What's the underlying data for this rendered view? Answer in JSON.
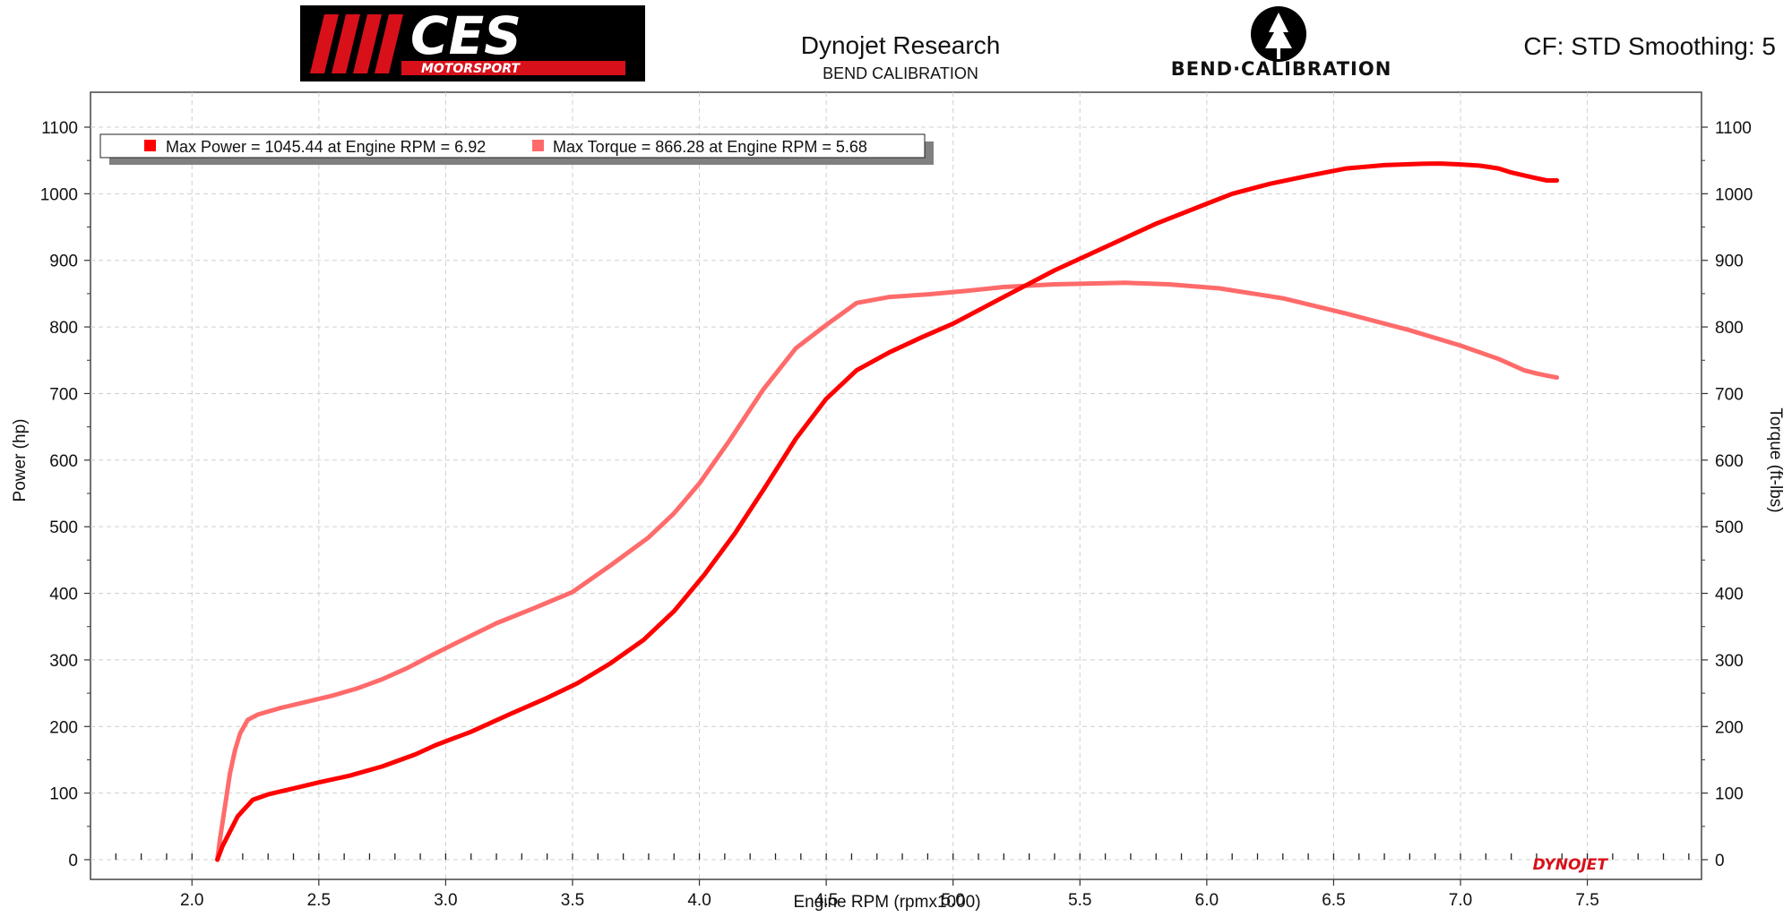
{
  "header": {
    "title": "Dynojet Research",
    "subtitle": "BEND CALIBRATION",
    "settings": "CF: STD Smoothing: 5"
  },
  "logos": {
    "ces_main": "CES",
    "ces_sub": "MOTORSPORT",
    "bend": "BEND·CALIBRATION",
    "dynojet": "DYNOJET"
  },
  "legend": {
    "power": "Max Power = 1045.44 at Engine RPM = 6.92",
    "torque": "Max Torque = 866.28 at Engine RPM = 5.68"
  },
  "colors": {
    "power": "#ff0000",
    "torque": "#ff6b6b",
    "grid": "#cfcfcf"
  },
  "chart_data": {
    "type": "line",
    "xlabel": "Engine RPM (rpmx1000)",
    "ylabel": "Power (hp)",
    "y2label": "Torque (ft-lbs)",
    "xlim": [
      1.6,
      7.95
    ],
    "ylim": [
      0,
      1100
    ],
    "y2lim": [
      0,
      1100
    ],
    "xticks": [
      "2.0",
      "2.5",
      "3.0",
      "3.5",
      "4.0",
      "4.5",
      "5.0",
      "5.5",
      "6.0",
      "6.5",
      "7.0",
      "7.5"
    ],
    "yticks": [
      "0",
      "100",
      "200",
      "300",
      "400",
      "500",
      "600",
      "700",
      "800",
      "900",
      "1000",
      "1100"
    ],
    "grid": true,
    "legend_position": "top-left",
    "series": [
      {
        "name": "Power",
        "axis": "left",
        "x": [
          2.1,
          2.12,
          2.18,
          2.24,
          2.3,
          2.4,
          2.5,
          2.62,
          2.75,
          2.88,
          2.96,
          3.1,
          3.25,
          3.4,
          3.52,
          3.65,
          3.78,
          3.9,
          4.02,
          4.14,
          4.26,
          4.38,
          4.5,
          4.62,
          4.75,
          4.88,
          5.0,
          5.2,
          5.4,
          5.6,
          5.8,
          6.0,
          6.1,
          6.25,
          6.4,
          6.55,
          6.7,
          6.85,
          6.92,
          7.0,
          7.08,
          7.15,
          7.2,
          7.28,
          7.34,
          7.38
        ],
        "values": [
          0,
          20,
          65,
          90,
          98,
          107,
          116,
          126,
          140,
          158,
          172,
          192,
          218,
          243,
          265,
          295,
          330,
          373,
          428,
          490,
          560,
          632,
          692,
          735,
          762,
          785,
          805,
          845,
          885,
          920,
          955,
          985,
          1000,
          1015,
          1027,
          1038,
          1043,
          1045,
          1045.44,
          1044,
          1042,
          1038,
          1032,
          1025,
          1020,
          1020
        ]
      },
      {
        "name": "Torque",
        "axis": "right",
        "x": [
          2.1,
          2.11,
          2.13,
          2.15,
          2.17,
          2.19,
          2.22,
          2.26,
          2.35,
          2.45,
          2.55,
          2.65,
          2.75,
          2.85,
          2.95,
          3.05,
          3.2,
          3.35,
          3.5,
          3.65,
          3.8,
          3.9,
          4.0,
          4.12,
          4.25,
          4.38,
          4.5,
          4.62,
          4.75,
          4.9,
          5.05,
          5.2,
          5.4,
          5.68,
          5.85,
          6.05,
          6.3,
          6.55,
          6.8,
          7.0,
          7.15,
          7.25,
          7.3,
          7.34,
          7.38
        ],
        "values": [
          0,
          30,
          80,
          130,
          165,
          190,
          210,
          218,
          228,
          237,
          246,
          257,
          271,
          288,
          308,
          327,
          355,
          378,
          402,
          442,
          484,
          520,
          565,
          630,
          705,
          768,
          803,
          836,
          845,
          849,
          854,
          860,
          864,
          866.28,
          864,
          858,
          843,
          820,
          795,
          772,
          752,
          735,
          730,
          727,
          724
        ]
      }
    ]
  }
}
